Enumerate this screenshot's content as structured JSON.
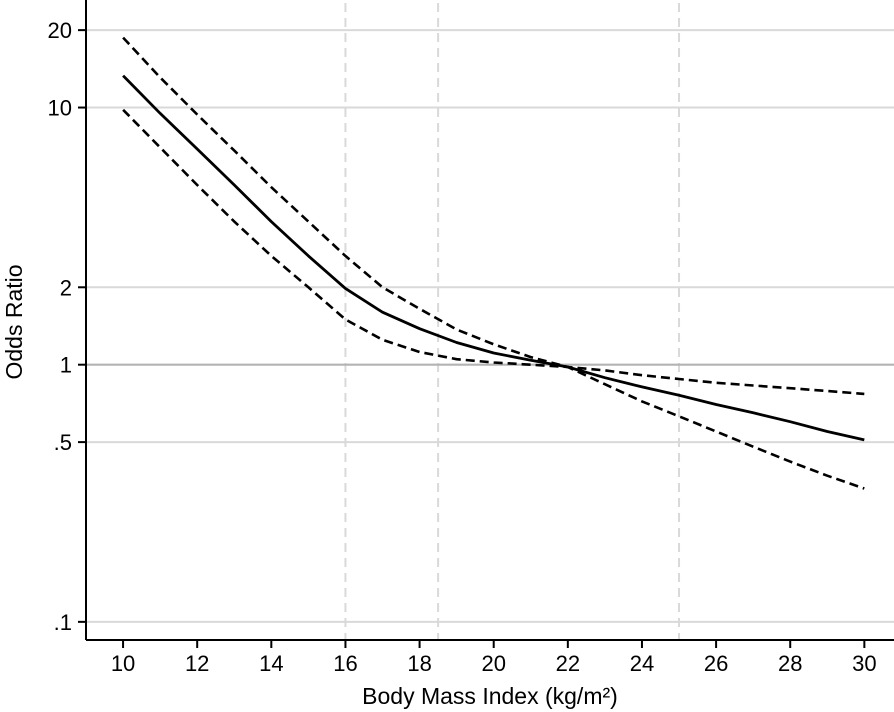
{
  "chart_data": {
    "type": "line",
    "xlabel": "Body Mass Index (kg/m²)",
    "ylabel": "Odds Ratio",
    "yscale": "log",
    "xlim": [
      9.0,
      30.8
    ],
    "ylim": [
      0.085,
      25.5
    ],
    "x_ticks": [
      10,
      12,
      14,
      16,
      18,
      20,
      22,
      24,
      26,
      28,
      30
    ],
    "x_tick_labels": [
      "10",
      "12",
      "14",
      "16",
      "18",
      "20",
      "22",
      "24",
      "26",
      "28",
      "30"
    ],
    "y_ticks": [
      0.1,
      0.5,
      1,
      2,
      10,
      20
    ],
    "y_tick_labels": [
      ".1",
      ".5",
      "1",
      "2",
      "10",
      "20"
    ],
    "grid": "on",
    "reference_line_y": 1,
    "vertical_reference_x": [
      16,
      18.5,
      25
    ],
    "x": [
      10,
      11,
      12,
      13,
      14,
      15,
      16,
      17,
      18,
      19,
      20,
      21,
      22,
      23,
      24,
      25,
      26,
      27,
      28,
      29,
      30
    ],
    "series": [
      {
        "style": "solid",
        "values": [
          13.3,
          9.5,
          6.9,
          5.0,
          3.6,
          2.65,
          1.98,
          1.6,
          1.38,
          1.22,
          1.11,
          1.04,
          0.98,
          0.89,
          0.82,
          0.76,
          0.7,
          0.65,
          0.6,
          0.55,
          0.51
        ]
      },
      {
        "style": "dashed",
        "values": [
          18.7,
          13.1,
          9.4,
          6.8,
          4.9,
          3.6,
          2.65,
          2.0,
          1.65,
          1.37,
          1.2,
          1.07,
          0.98,
          0.84,
          0.72,
          0.63,
          0.55,
          0.48,
          0.42,
          0.37,
          0.33
        ]
      },
      {
        "style": "dashed",
        "values": [
          9.8,
          7.0,
          5.0,
          3.6,
          2.65,
          2.0,
          1.5,
          1.25,
          1.12,
          1.05,
          1.02,
          1.0,
          0.98,
          0.95,
          0.91,
          0.88,
          0.85,
          0.83,
          0.81,
          0.79,
          0.77
        ]
      }
    ],
    "colors": {
      "line": "#000000",
      "grid": "#d9d9d9",
      "reference": "#b3b3b3",
      "axis": "#000000"
    }
  }
}
